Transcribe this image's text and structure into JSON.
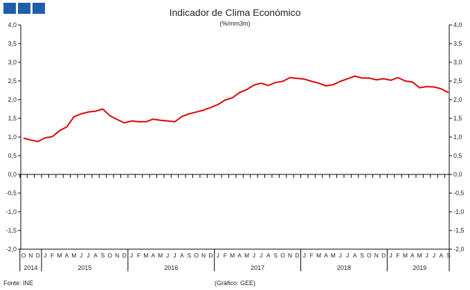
{
  "header": {
    "title": "Indicador de Clima Económico",
    "subtitle": "(%/mm3m)",
    "logo_color": "#1f5fa8"
  },
  "footer": {
    "source": "Fonte: INE",
    "credit": "(Gráfico: GEE)"
  },
  "chart_data": {
    "type": "line",
    "title": "Indicador de Clima Económico",
    "subtitle": "(%/mm3m)",
    "ylim": [
      -2.0,
      4.0
    ],
    "y_ticks": [
      "4,0",
      "3,5",
      "3,0",
      "2,5",
      "2,0",
      "1,5",
      "1,0",
      "0,5",
      "0,0",
      "-0,5",
      "-1,0",
      "-1,5",
      "-2,0"
    ],
    "grid": false,
    "line_color": "#e00000",
    "month_labels": [
      "O",
      "N",
      "D",
      "J",
      "F",
      "M",
      "A",
      "M",
      "J",
      "J",
      "A",
      "S",
      "O",
      "N",
      "D",
      "J",
      "F",
      "M",
      "A",
      "M",
      "J",
      "J",
      "A",
      "S",
      "O",
      "N",
      "D",
      "J",
      "F",
      "M",
      "A",
      "M",
      "J",
      "J",
      "A",
      "S",
      "O",
      "N",
      "D",
      "J",
      "F",
      "M",
      "A",
      "M",
      "J",
      "J",
      "A",
      "S",
      "O",
      "N",
      "D",
      "J",
      "F",
      "M",
      "A",
      "M",
      "J",
      "J",
      "A",
      "S"
    ],
    "year_labels": [
      {
        "label": "2014",
        "start": 0,
        "count": 3
      },
      {
        "label": "2015",
        "start": 3,
        "count": 12
      },
      {
        "label": "2016",
        "start": 15,
        "count": 12
      },
      {
        "label": "2017",
        "start": 27,
        "count": 12
      },
      {
        "label": "2018",
        "start": 39,
        "count": 12
      },
      {
        "label": "2019",
        "start": 51,
        "count": 9
      }
    ],
    "series": [
      {
        "values": [
          0.97,
          0.92,
          0.88,
          0.98,
          1.01,
          1.17,
          1.27,
          1.54,
          1.62,
          1.67,
          1.69,
          1.75,
          1.57,
          1.47,
          1.38,
          1.43,
          1.41,
          1.41,
          1.48,
          1.45,
          1.43,
          1.41,
          1.55,
          1.62,
          1.67,
          1.72,
          1.79,
          1.87,
          1.99,
          2.05,
          2.19,
          2.27,
          2.39,
          2.44,
          2.38,
          2.46,
          2.49,
          2.59,
          2.57,
          2.55,
          2.49,
          2.44,
          2.37,
          2.4,
          2.49,
          2.56,
          2.63,
          2.58,
          2.58,
          2.53,
          2.56,
          2.52,
          2.59,
          2.5,
          2.47,
          2.32,
          2.35,
          2.34,
          2.29,
          2.19
        ]
      }
    ]
  }
}
